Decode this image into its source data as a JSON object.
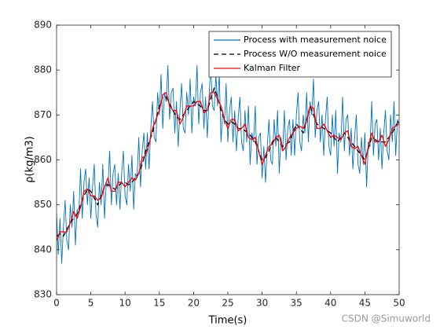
{
  "chart_data": {
    "type": "line",
    "xlabel": "Time(s)",
    "ylabel": "ρ(kg/m3)",
    "xlim": [
      0,
      50
    ],
    "xticks": [
      0,
      5,
      10,
      15,
      20,
      25,
      30,
      35,
      40,
      45,
      50
    ],
    "ylim": [
      830,
      890
    ],
    "yticks": [
      830,
      840,
      850,
      860,
      870,
      880,
      890
    ],
    "grid": false,
    "legend": "top-right",
    "watermark": "CSDN @Simuworld",
    "series": [
      {
        "name": "Process with measurement noice",
        "color": "#0072bd",
        "linestyle": "solid",
        "x": [
          0,
          0.25,
          0.5,
          0.75,
          1,
          1.25,
          1.5,
          1.75,
          2,
          2.25,
          2.5,
          2.75,
          3,
          3.25,
          3.5,
          3.75,
          4,
          4.25,
          4.5,
          4.75,
          5,
          5.25,
          5.5,
          5.75,
          6,
          6.25,
          6.5,
          6.75,
          7,
          7.25,
          7.5,
          7.75,
          8,
          8.25,
          8.5,
          8.75,
          9,
          9.25,
          9.5,
          9.75,
          10,
          10.25,
          10.5,
          10.75,
          11,
          11.25,
          11.5,
          11.75,
          12,
          12.25,
          12.5,
          12.75,
          13,
          13.25,
          13.5,
          13.75,
          14,
          14.25,
          14.5,
          14.75,
          15,
          15.25,
          15.5,
          15.75,
          16,
          16.25,
          16.5,
          16.75,
          17,
          17.25,
          17.5,
          17.75,
          18,
          18.25,
          18.5,
          18.75,
          19,
          19.25,
          19.5,
          19.75,
          20,
          20.25,
          20.5,
          20.75,
          21,
          21.25,
          21.5,
          21.75,
          22,
          22.25,
          22.5,
          22.75,
          23,
          23.25,
          23.5,
          23.75,
          24,
          24.25,
          24.5,
          24.75,
          25,
          25.25,
          25.5,
          25.75,
          26,
          26.25,
          26.5,
          26.75,
          27,
          27.25,
          27.5,
          27.75,
          28,
          28.25,
          28.5,
          28.75,
          29,
          29.25,
          29.5,
          29.75,
          30,
          30.25,
          30.5,
          30.75,
          31,
          31.25,
          31.5,
          31.75,
          32,
          32.25,
          32.5,
          32.75,
          33,
          33.25,
          33.5,
          33.75,
          34,
          34.25,
          34.5,
          34.75,
          35,
          35.25,
          35.5,
          35.75,
          36,
          36.25,
          36.5,
          36.75,
          37,
          37.25,
          37.5,
          37.75,
          38,
          38.25,
          38.5,
          38.75,
          39,
          39.25,
          39.5,
          39.75,
          40,
          40.25,
          40.5,
          40.75,
          41,
          41.25,
          41.5,
          41.75,
          42,
          42.25,
          42.5,
          42.75,
          43,
          43.25,
          43.5,
          43.75,
          44,
          44.25,
          44.5,
          44.75,
          45,
          45.25,
          45.5,
          45.75,
          46,
          46.25,
          46.5,
          46.75,
          47,
          47.25,
          47.5,
          47.75,
          48,
          48.25,
          48.5,
          48.75,
          49,
          49.25,
          49.5,
          49.75,
          50
        ],
        "values": [
          848,
          839,
          847,
          837,
          845,
          851,
          842,
          840,
          850,
          845,
          853,
          841,
          849,
          848,
          858,
          847,
          855,
          858,
          850,
          856,
          847,
          854,
          859,
          848,
          845,
          855,
          850,
          859,
          847,
          855,
          854,
          862,
          850,
          857,
          859,
          850,
          857,
          849,
          857,
          862,
          852,
          850,
          859,
          853,
          861,
          849,
          857,
          856,
          865,
          854,
          862,
          866,
          858,
          866,
          858,
          867,
          873,
          865,
          864,
          875,
          870,
          879,
          867,
          875,
          873,
          881,
          869,
          875,
          876,
          866,
          873,
          863,
          871,
          877,
          867,
          866,
          875,
          870,
          878,
          866,
          874,
          872,
          881,
          868,
          875,
          877,
          867,
          874,
          865,
          874,
          881,
          872,
          871,
          879,
          872,
          879,
          864,
          871,
          868,
          877,
          864,
          871,
          874,
          864,
          871,
          862,
          869,
          874,
          864,
          862,
          871,
          864,
          872,
          859,
          866,
          864,
          872,
          859,
          865,
          866,
          856,
          863,
          855,
          863,
          869,
          860,
          859,
          869,
          863,
          871,
          857,
          865,
          862,
          871,
          860,
          867,
          869,
          861,
          869,
          861,
          870,
          875,
          864,
          862,
          870,
          866,
          875,
          864,
          873,
          870,
          878,
          865,
          871,
          873,
          864,
          870,
          861,
          869,
          874,
          863,
          861,
          870,
          863,
          871,
          857,
          866,
          864,
          874,
          862,
          869,
          870,
          861,
          867,
          858,
          865,
          870,
          859,
          857,
          865,
          859,
          866,
          854,
          864,
          863,
          873,
          861,
          868,
          869,
          860,
          867,
          858,
          866,
          871,
          862,
          860,
          870,
          864,
          873,
          861,
          869,
          868
        ]
      },
      {
        "name": "Process W/O measurement noice",
        "color": "#000000",
        "linestyle": "dashed",
        "x": [
          0,
          0.5,
          1,
          1.5,
          2,
          2.5,
          3,
          3.5,
          4,
          4.5,
          5,
          5.5,
          6,
          6.5,
          7,
          7.5,
          8,
          8.5,
          9,
          9.5,
          10,
          10.5,
          11,
          11.5,
          12,
          12.5,
          13,
          13.5,
          14,
          14.5,
          15,
          15.5,
          16,
          16.5,
          17,
          17.5,
          18,
          18.5,
          19,
          19.5,
          20,
          20.5,
          21,
          21.5,
          22,
          22.5,
          23,
          23.5,
          24,
          24.5,
          25,
          25.5,
          26,
          26.5,
          27,
          27.5,
          28,
          28.5,
          29,
          29.5,
          30,
          30.5,
          31,
          31.5,
          32,
          32.5,
          33,
          33.5,
          34,
          34.5,
          35,
          35.5,
          36,
          36.5,
          37,
          37.5,
          38,
          38.5,
          39,
          39.5,
          40,
          40.5,
          41,
          41.5,
          42,
          42.5,
          43,
          43.5,
          44,
          44.5,
          45,
          45.5,
          46,
          46.5,
          47,
          47.5,
          48,
          48.5,
          49,
          49.5,
          50
        ],
        "values": [
          843,
          843.5,
          843,
          844.5,
          846,
          847,
          848,
          850,
          852,
          853.5,
          853,
          851.5,
          850,
          852,
          854,
          854.5,
          854,
          853.5,
          854,
          855,
          855,
          854.5,
          855,
          856,
          857,
          859,
          862,
          864,
          866,
          869,
          872,
          874,
          874,
          872.5,
          871,
          869.5,
          869,
          870,
          871,
          872,
          873,
          872.5,
          872,
          871,
          871,
          873.5,
          876,
          874,
          871,
          869,
          868,
          868.5,
          868,
          867,
          867,
          866.5,
          866,
          865,
          864,
          862,
          860,
          860.5,
          862,
          864,
          865,
          864,
          863,
          863.5,
          864,
          866,
          868,
          867,
          866,
          869,
          872,
          870,
          868,
          867.5,
          867,
          866.5,
          866,
          865,
          864,
          865,
          866,
          865,
          864,
          863,
          862,
          861,
          860,
          862.5,
          865,
          864.5,
          864,
          864,
          864,
          865,
          866,
          867.5,
          869
        ]
      },
      {
        "name": "Kalman Filter",
        "color": "#ff0000",
        "linestyle": "solid",
        "x": [
          0,
          0.5,
          1,
          1.5,
          2,
          2.5,
          3,
          3.5,
          4,
          4.5,
          5,
          5.5,
          6,
          6.5,
          7,
          7.5,
          8,
          8.5,
          9,
          9.5,
          10,
          10.5,
          11,
          11.5,
          12,
          12.5,
          13,
          13.5,
          14,
          14.5,
          15,
          15.5,
          16,
          16.5,
          17,
          17.5,
          18,
          18.5,
          19,
          19.5,
          20,
          20.5,
          21,
          21.5,
          22,
          22.5,
          23,
          23.5,
          24,
          24.5,
          25,
          25.5,
          26,
          26.5,
          27,
          27.5,
          28,
          28.5,
          29,
          29.5,
          30,
          30.5,
          31,
          31.5,
          32,
          32.5,
          33,
          33.5,
          34,
          34.5,
          35,
          35.5,
          36,
          36.5,
          37,
          37.5,
          38,
          38.5,
          39,
          39.5,
          40,
          40.5,
          41,
          41.5,
          42,
          42.5,
          43,
          43.5,
          44,
          44.5,
          45,
          45.5,
          46,
          46.5,
          47,
          47.5,
          48,
          48.5,
          49,
          49.5,
          50
        ],
        "values": [
          842,
          844,
          844,
          844,
          846,
          848.5,
          847,
          849.5,
          853,
          853.5,
          852,
          852,
          851,
          851.5,
          854,
          856,
          853,
          853,
          855,
          855,
          854,
          855,
          856,
          855.5,
          857,
          860.5,
          861,
          863.5,
          867,
          869,
          871,
          874.5,
          875,
          872,
          871,
          871,
          868,
          869.5,
          872,
          872,
          872,
          873,
          873,
          870.5,
          871,
          875,
          875,
          873.5,
          872,
          869,
          867,
          869,
          869,
          866.5,
          867,
          868,
          865,
          864.5,
          865,
          862,
          859,
          861,
          863,
          863.5,
          865,
          865.5,
          862,
          863,
          865,
          866,
          867,
          867.5,
          867,
          868.5,
          872,
          871.5,
          867,
          867,
          868,
          866.5,
          865,
          865.5,
          865,
          864.5,
          866,
          866.5,
          863,
          862.5,
          863,
          861,
          859,
          863,
          866,
          864,
          864,
          865.5,
          863,
          864.5,
          867,
          867.5,
          868
        ]
      }
    ]
  }
}
